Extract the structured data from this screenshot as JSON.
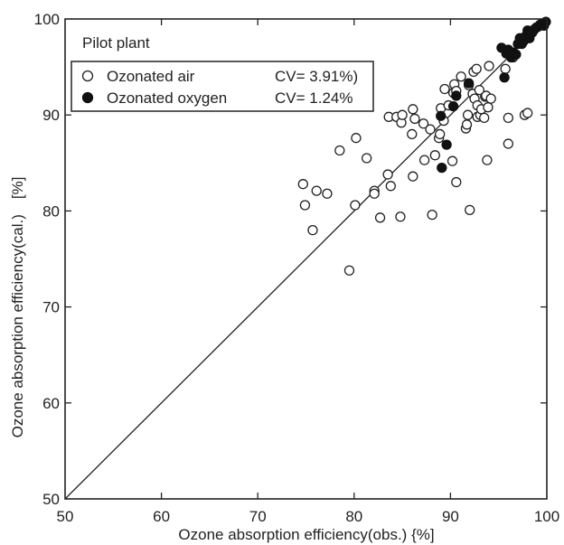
{
  "chart_data": {
    "type": "scatter",
    "title": "",
    "xlabel": "Ozone absorption efficiency(obs.) {%]",
    "ylabel": "Ozone absorption efficiency(cal.)　[%]",
    "xlim": [
      50,
      100
    ],
    "ylim": [
      50,
      100
    ],
    "x_ticks": [
      "50",
      "60",
      "70",
      "80",
      "90",
      "100"
    ],
    "y_ticks": [
      "50",
      "60",
      "70",
      "80",
      "90",
      "100"
    ],
    "grid": false,
    "legend_title": "Pilot plant",
    "legend_position": "top-left",
    "reference_line": "y = x",
    "series": [
      {
        "name": "Ozonated air",
        "cv_label": "CV= 3.91%)",
        "marker": "open-circle",
        "color": "#222222",
        "points": [
          [
            74.7,
            82.8
          ],
          [
            74.9,
            80.6
          ],
          [
            75.7,
            78.0
          ],
          [
            76.1,
            82.1
          ],
          [
            77.2,
            81.8
          ],
          [
            78.5,
            86.3
          ],
          [
            79.5,
            73.8
          ],
          [
            80.1,
            80.6
          ],
          [
            80.2,
            87.6
          ],
          [
            81.3,
            85.5
          ],
          [
            82.1,
            82.1
          ],
          [
            82.1,
            81.8
          ],
          [
            82.7,
            79.3
          ],
          [
            83.5,
            83.8
          ],
          [
            83.6,
            89.8
          ],
          [
            83.8,
            82.6
          ],
          [
            84.4,
            89.8
          ],
          [
            84.8,
            79.4
          ],
          [
            84.9,
            89.2
          ],
          [
            85.0,
            90.0
          ],
          [
            86.0,
            88.0
          ],
          [
            86.1,
            83.6
          ],
          [
            86.1,
            90.6
          ],
          [
            86.3,
            89.6
          ],
          [
            87.2,
            89.1
          ],
          [
            87.3,
            85.3
          ],
          [
            87.9,
            88.5
          ],
          [
            88.1,
            79.6
          ],
          [
            88.4,
            85.8
          ],
          [
            88.8,
            87.6
          ],
          [
            88.9,
            88.0
          ],
          [
            89.0,
            90.7
          ],
          [
            89.3,
            89.4
          ],
          [
            89.4,
            92.7
          ],
          [
            89.8,
            91.0
          ],
          [
            90.2,
            85.2
          ],
          [
            90.3,
            92.3
          ],
          [
            90.4,
            93.2
          ],
          [
            90.6,
            92.5
          ],
          [
            90.6,
            83.0
          ],
          [
            91.1,
            94.0
          ],
          [
            91.6,
            88.6
          ],
          [
            91.7,
            89.0
          ],
          [
            91.8,
            90.0
          ],
          [
            91.9,
            93.1
          ],
          [
            92.0,
            80.1
          ],
          [
            92.3,
            92.2
          ],
          [
            92.4,
            94.5
          ],
          [
            92.5,
            91.7
          ],
          [
            92.7,
            94.8
          ],
          [
            92.8,
            91.0
          ],
          [
            92.8,
            89.8
          ],
          [
            93.0,
            92.6
          ],
          [
            93.1,
            90.0
          ],
          [
            93.2,
            90.6
          ],
          [
            93.5,
            89.7
          ],
          [
            93.6,
            91.9
          ],
          [
            93.7,
            92.0
          ],
          [
            93.8,
            85.3
          ],
          [
            93.9,
            90.8
          ],
          [
            94.0,
            95.1
          ],
          [
            94.2,
            91.7
          ],
          [
            95.7,
            94.8
          ],
          [
            96.0,
            89.7
          ],
          [
            96.0,
            87.0
          ],
          [
            96.5,
            96.0
          ],
          [
            97.7,
            90.0
          ],
          [
            98.0,
            90.2
          ]
        ]
      },
      {
        "name": "Ozonated oxygen",
        "cv_label": "CV= 1.24%",
        "marker": "filled-circle",
        "color": "#111111",
        "points": [
          [
            89.0,
            89.9
          ],
          [
            89.1,
            84.5
          ],
          [
            89.6,
            86.9
          ],
          [
            90.3,
            90.9
          ],
          [
            90.6,
            92.0
          ],
          [
            91.9,
            93.3
          ],
          [
            95.3,
            97.0
          ],
          [
            95.6,
            93.9
          ],
          [
            95.8,
            96.4
          ],
          [
            96.0,
            96.8
          ],
          [
            96.3,
            96.0
          ],
          [
            96.5,
            96.5
          ],
          [
            96.8,
            96.3
          ],
          [
            97.0,
            97.4
          ],
          [
            97.2,
            98.0
          ],
          [
            97.4,
            97.4
          ],
          [
            97.6,
            97.7
          ],
          [
            97.8,
            98.2
          ],
          [
            98.0,
            98.8
          ],
          [
            98.2,
            98.0
          ],
          [
            98.3,
            98.6
          ],
          [
            98.5,
            98.6
          ],
          [
            98.7,
            98.9
          ],
          [
            98.9,
            99.1
          ],
          [
            99.1,
            99.2
          ],
          [
            99.3,
            99.4
          ],
          [
            99.5,
            99.5
          ],
          [
            99.7,
            99.3
          ],
          [
            99.8,
            99.6
          ],
          [
            99.9,
            99.7
          ]
        ]
      }
    ]
  }
}
